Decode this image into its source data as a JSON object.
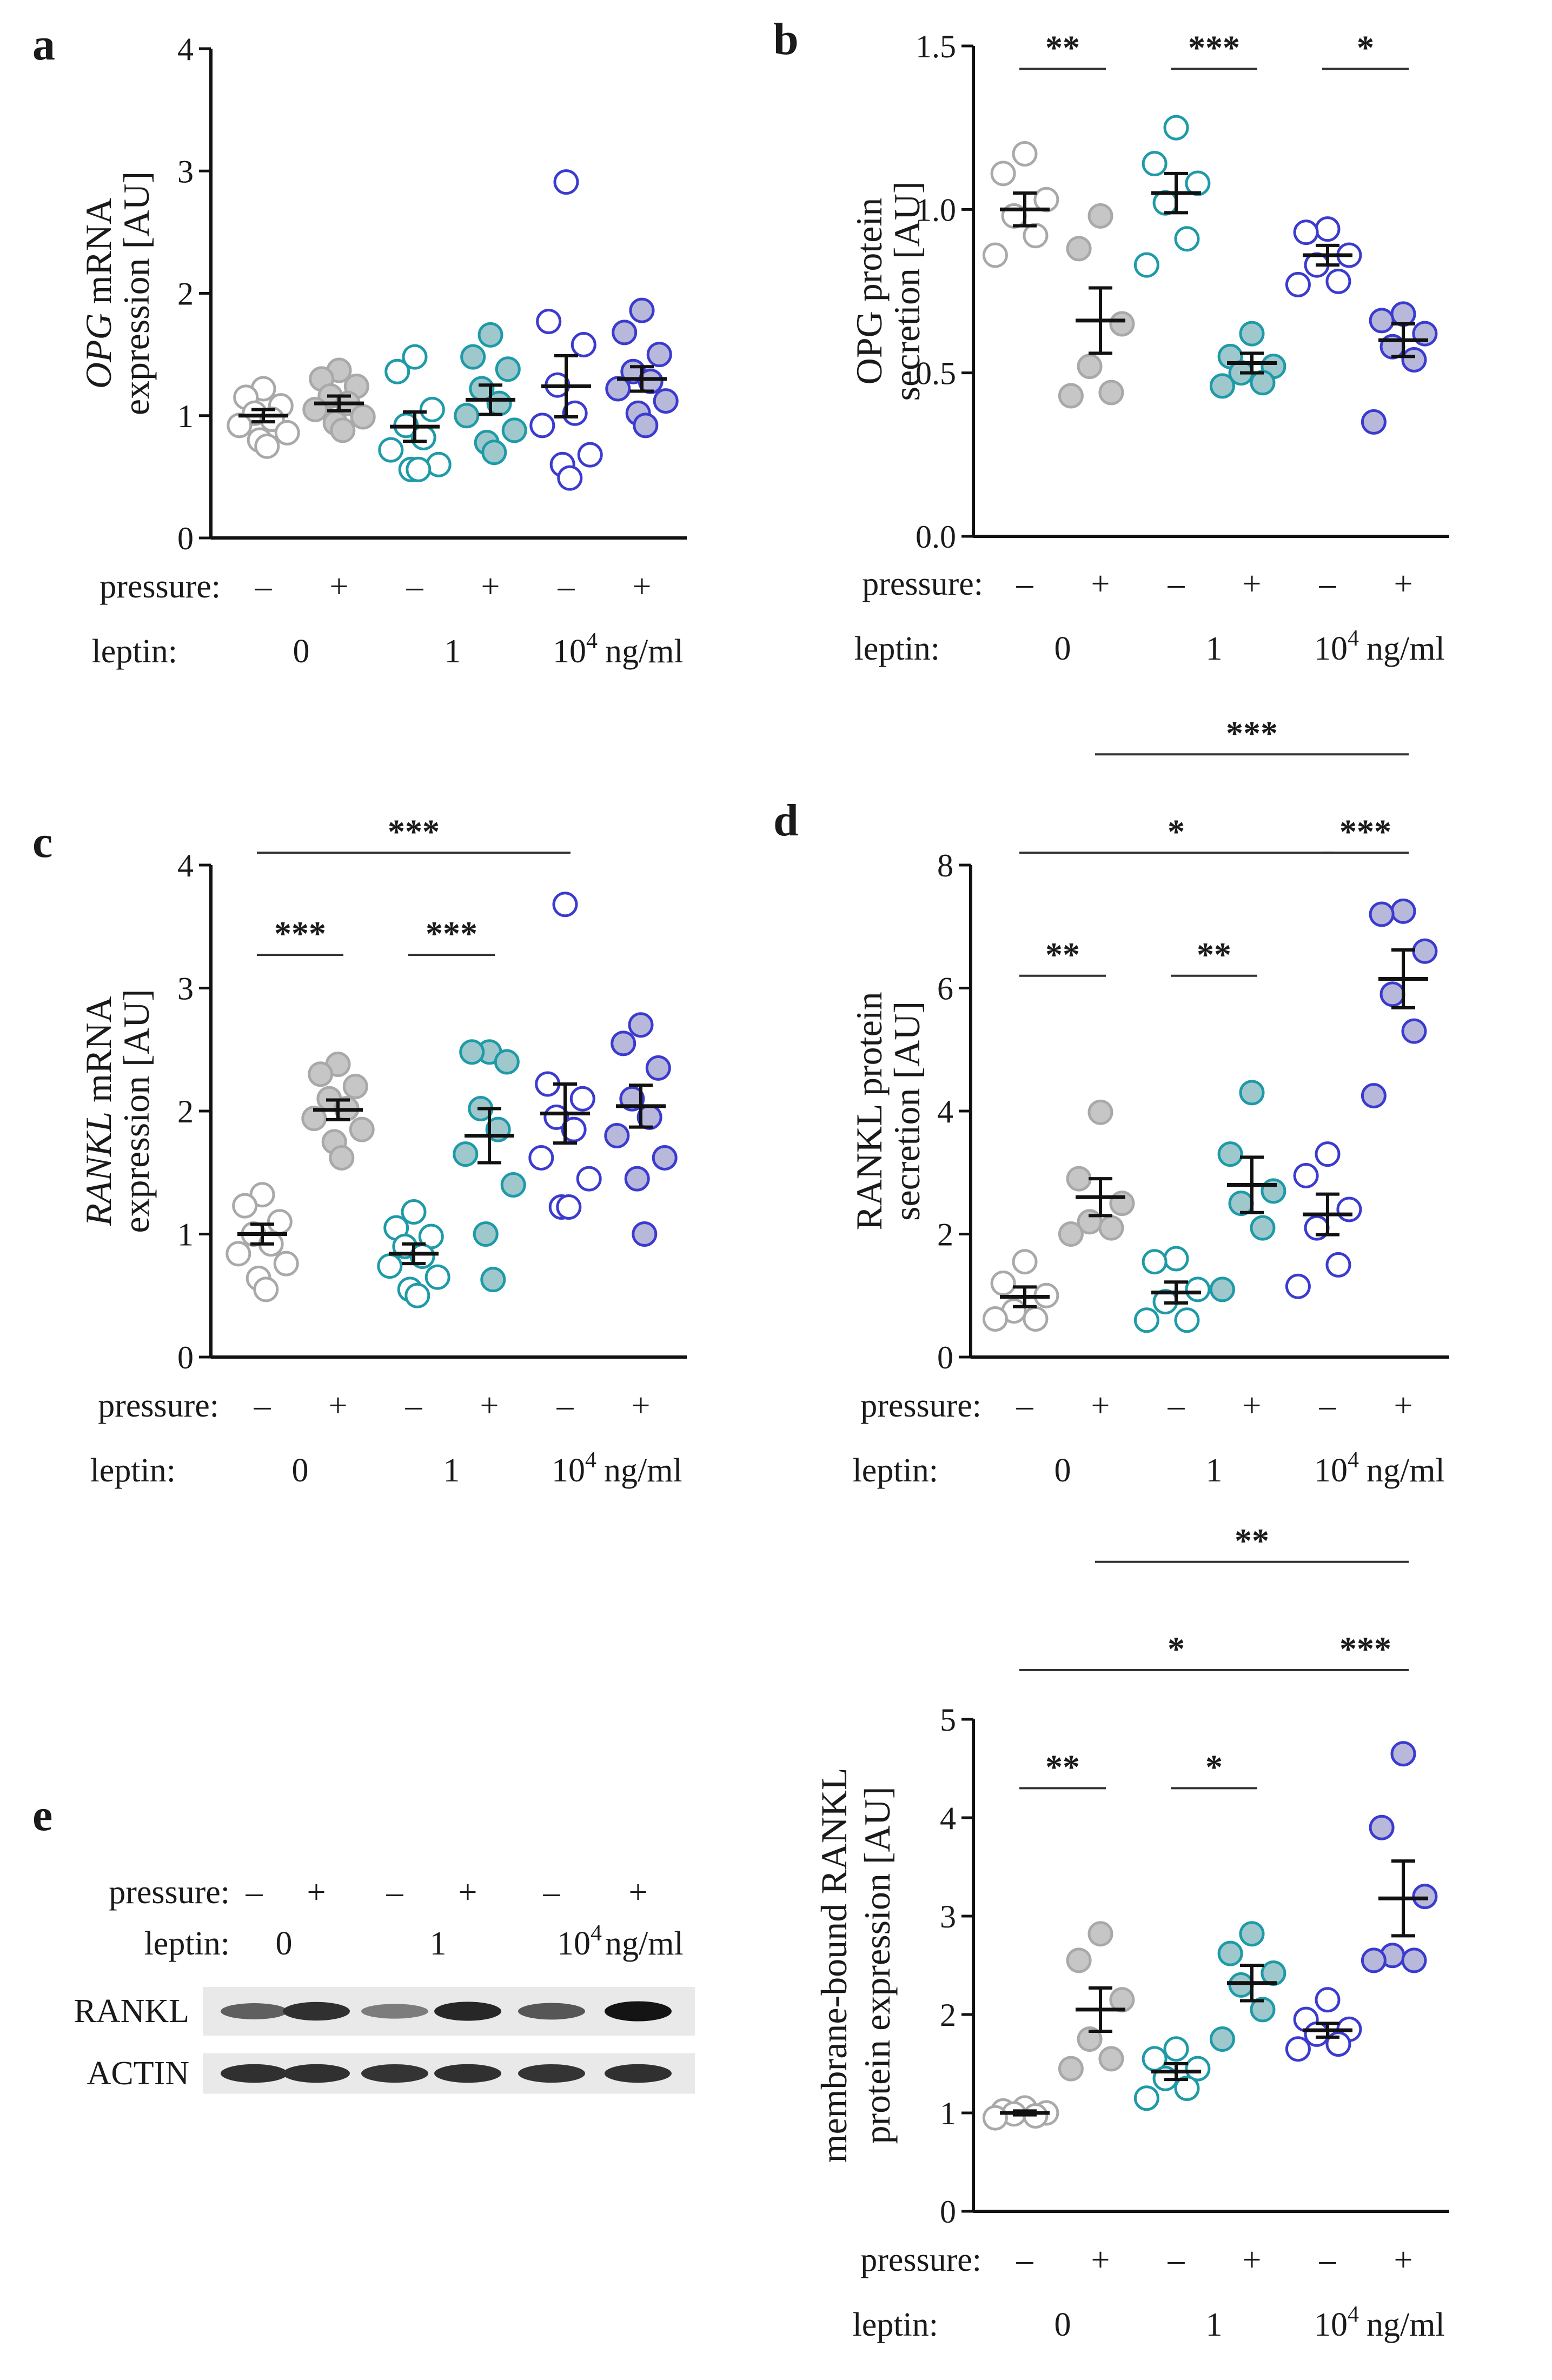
{
  "colors": {
    "control": "#a9a9a9",
    "leptin1": "#1e9aa8",
    "leptin10k": "#3b3bd0",
    "pressure_fill_control": "#c6c6c6",
    "pressure_fill_leptin1": "#9fc8cd",
    "pressure_fill_leptin10k": "#b8b8da",
    "mean_bar": "#111111"
  },
  "labels": {
    "pressure": "pressure:",
    "leptin": "leptin:",
    "minus": "–",
    "plus": "+",
    "leptin_0": "0",
    "leptin_1": "1",
    "leptin_10k_base": "10",
    "leptin_10k_exp": "4",
    "leptin_10k_unit": "ng/ml"
  },
  "chart_data": [
    {
      "id": "a",
      "type": "scatter",
      "panel_label": "a",
      "ylabel_line1_italic": "OPG",
      "ylabel_line1_rest": " mRNA",
      "ylabel_line2": "expression [AU]",
      "ylim": [
        0,
        4
      ],
      "yticks": [
        "0",
        "1",
        "2",
        "3",
        "4"
      ],
      "groups": [
        {
          "leptin": "0",
          "pressure": "-",
          "points": [
            1.22,
            1.15,
            1.08,
            1.02,
            0.97,
            0.92,
            0.86,
            0.8,
            0.75
          ],
          "mean": 1.0,
          "sem": 0.05
        },
        {
          "leptin": "0",
          "pressure": "+",
          "points": [
            1.37,
            1.3,
            1.24,
            1.16,
            1.1,
            1.05,
            0.99,
            0.94,
            0.88
          ],
          "mean": 1.1,
          "sem": 0.06
        },
        {
          "leptin": "1",
          "pressure": "-",
          "points": [
            1.48,
            1.36,
            1.05,
            0.92,
            0.82,
            0.72,
            0.6,
            0.56,
            0.56
          ],
          "mean": 0.91,
          "sem": 0.12
        },
        {
          "leptin": "1",
          "pressure": "+",
          "points": [
            1.66,
            1.48,
            1.38,
            1.22,
            1.1,
            1.0,
            0.88,
            0.78,
            0.7
          ],
          "mean": 1.13,
          "sem": 0.12
        },
        {
          "leptin": "10^4",
          "pressure": "-",
          "points": [
            2.91,
            1.77,
            1.58,
            1.25,
            1.02,
            0.92,
            0.68,
            0.6,
            0.49
          ],
          "mean": 1.24,
          "sem": 0.25
        },
        {
          "leptin": "10^4",
          "pressure": "+",
          "points": [
            1.86,
            1.68,
            1.5,
            1.36,
            1.28,
            1.22,
            1.12,
            1.02,
            0.92
          ],
          "mean": 1.3,
          "sem": 0.1
        }
      ],
      "significance": []
    },
    {
      "id": "b",
      "type": "scatter",
      "panel_label": "b",
      "ylabel_line1": "OPG protein",
      "ylabel_line2": "secretion [AU]",
      "ylim": [
        0,
        1.5
      ],
      "yticks": [
        "0.0",
        "0.5",
        "1.0",
        "1.5"
      ],
      "groups": [
        {
          "leptin": "0",
          "pressure": "-",
          "points": [
            1.17,
            1.11,
            1.03,
            0.98,
            0.92,
            0.86
          ],
          "mean": 1.0,
          "sem": 0.05
        },
        {
          "leptin": "0",
          "pressure": "+",
          "points": [
            0.98,
            0.88,
            0.65,
            0.52,
            0.44,
            0.43
          ],
          "mean": 0.66,
          "sem": 0.1
        },
        {
          "leptin": "1",
          "pressure": "-",
          "points": [
            1.25,
            1.14,
            1.08,
            1.02,
            0.91,
            0.83
          ],
          "mean": 1.05,
          "sem": 0.06
        },
        {
          "leptin": "1",
          "pressure": "+",
          "points": [
            0.62,
            0.55,
            0.52,
            0.5,
            0.47,
            0.46
          ],
          "mean": 0.53,
          "sem": 0.03
        },
        {
          "leptin": "10^4",
          "pressure": "-",
          "points": [
            0.94,
            0.93,
            0.86,
            0.83,
            0.78,
            0.77
          ],
          "mean": 0.86,
          "sem": 0.03
        },
        {
          "leptin": "10^4",
          "pressure": "+",
          "points": [
            0.68,
            0.66,
            0.62,
            0.58,
            0.54,
            0.35
          ],
          "mean": 0.6,
          "sem": 0.05
        }
      ],
      "significance": [
        {
          "from": 0,
          "to": 1,
          "label": "**",
          "y": 1.43
        },
        {
          "from": 2,
          "to": 3,
          "label": "***",
          "y": 1.43
        },
        {
          "from": 4,
          "to": 5,
          "label": "*",
          "y": 1.43
        }
      ]
    },
    {
      "id": "c",
      "type": "scatter",
      "panel_label": "c",
      "ylabel_line1_italic": "RANKL",
      "ylabel_line1_rest": " mRNA",
      "ylabel_line2": "expression [AU]",
      "ylim": [
        0,
        4
      ],
      "yticks": [
        "0",
        "1",
        "2",
        "3",
        "4"
      ],
      "groups": [
        {
          "leptin": "0",
          "pressure": "-",
          "points": [
            1.32,
            1.23,
            1.1,
            1.0,
            0.92,
            0.84,
            0.76,
            0.64,
            0.55
          ],
          "mean": 1.0,
          "sem": 0.08
        },
        {
          "leptin": "0",
          "pressure": "+",
          "points": [
            2.38,
            2.3,
            2.2,
            2.1,
            2.02,
            1.94,
            1.85,
            1.75,
            1.62
          ],
          "mean": 2.01,
          "sem": 0.08
        },
        {
          "leptin": "1",
          "pressure": "-",
          "points": [
            1.18,
            1.05,
            0.98,
            0.9,
            0.82,
            0.74,
            0.65,
            0.55,
            0.5
          ],
          "mean": 0.84,
          "sem": 0.08
        },
        {
          "leptin": "1",
          "pressure": "+",
          "points": [
            2.48,
            2.48,
            2.4,
            2.02,
            1.85,
            1.65,
            1.4,
            1.0,
            0.63
          ],
          "mean": 1.8,
          "sem": 0.22
        },
        {
          "leptin": "10^4",
          "pressure": "-",
          "points": [
            3.68,
            2.22,
            2.1,
            1.95,
            1.85,
            1.62,
            1.45,
            1.22,
            1.22
          ],
          "mean": 1.98,
          "sem": 0.24
        },
        {
          "leptin": "10^4",
          "pressure": "+",
          "points": [
            2.7,
            2.55,
            2.35,
            2.1,
            1.95,
            1.8,
            1.62,
            1.45,
            1.0
          ],
          "mean": 2.04,
          "sem": 0.17
        }
      ],
      "significance": [
        {
          "from": 0,
          "to": 1,
          "label": "***",
          "y": 3.27
        },
        {
          "from": 2,
          "to": 3,
          "label": "***",
          "y": 3.27
        },
        {
          "from": 0,
          "to": 4,
          "label": "***",
          "y": 4.1
        }
      ]
    },
    {
      "id": "d",
      "type": "scatter",
      "panel_label": "d",
      "ylabel_line1": "RANKL protein",
      "ylabel_line2": "secretion [AU]",
      "ylim": [
        0,
        8
      ],
      "yticks": [
        "0",
        "2",
        "4",
        "6",
        "8"
      ],
      "groups": [
        {
          "leptin": "0",
          "pressure": "-",
          "points": [
            1.55,
            1.2,
            1.0,
            0.75,
            0.62,
            0.62
          ],
          "mean": 0.98,
          "sem": 0.16
        },
        {
          "leptin": "0",
          "pressure": "+",
          "points": [
            3.98,
            2.9,
            2.5,
            2.2,
            2.1,
            2.0
          ],
          "mean": 2.6,
          "sem": 0.3
        },
        {
          "leptin": "1",
          "pressure": "-",
          "points": [
            1.6,
            1.55,
            1.1,
            0.9,
            0.6,
            0.6
          ],
          "mean": 1.05,
          "sem": 0.17
        },
        {
          "leptin": "1",
          "pressure": "+",
          "points": [
            4.3,
            3.3,
            2.7,
            2.5,
            2.1,
            1.1
          ],
          "mean": 2.8,
          "sem": 0.45
        },
        {
          "leptin": "10^4",
          "pressure": "-",
          "points": [
            3.3,
            2.95,
            2.4,
            2.1,
            1.5,
            1.15
          ],
          "mean": 2.32,
          "sem": 0.33
        },
        {
          "leptin": "10^4",
          "pressure": "+",
          "points": [
            7.25,
            7.2,
            6.6,
            5.9,
            5.3,
            4.25
          ],
          "mean": 6.15,
          "sem": 0.47
        }
      ],
      "significance": [
        {
          "from": 0,
          "to": 1,
          "label": "**",
          "y": 6.2
        },
        {
          "from": 2,
          "to": 3,
          "label": "**",
          "y": 6.2
        },
        {
          "from": 0,
          "to": 4,
          "label": "*",
          "y": 8.2
        },
        {
          "from": 4,
          "to": 5,
          "label": "***",
          "y": 8.2
        },
        {
          "from": 1,
          "to": 5,
          "label": "***",
          "y": 9.8
        }
      ]
    },
    {
      "id": "e",
      "type": "scatter",
      "panel_label": "",
      "ylabel_line1": "membrane-bound RANKL",
      "ylabel_line2": "protein expression [AU]",
      "ylim": [
        0,
        5
      ],
      "yticks": [
        "0",
        "1",
        "2",
        "3",
        "4",
        "5"
      ],
      "groups": [
        {
          "leptin": "0",
          "pressure": "-",
          "points": [
            1.05,
            1.02,
            1.0,
            0.99,
            0.97,
            0.95
          ],
          "mean": 1.0,
          "sem": 0.02
        },
        {
          "leptin": "0",
          "pressure": "+",
          "points": [
            2.82,
            2.55,
            2.15,
            1.75,
            1.55,
            1.45
          ],
          "mean": 2.05,
          "sem": 0.22
        },
        {
          "leptin": "1",
          "pressure": "-",
          "points": [
            1.65,
            1.55,
            1.45,
            1.35,
            1.25,
            1.15
          ],
          "mean": 1.42,
          "sem": 0.08
        },
        {
          "leptin": "1",
          "pressure": "+",
          "points": [
            2.82,
            2.62,
            2.42,
            2.3,
            2.05,
            1.75
          ],
          "mean": 2.32,
          "sem": 0.18
        },
        {
          "leptin": "10^4",
          "pressure": "-",
          "points": [
            2.15,
            1.95,
            1.85,
            1.8,
            1.7,
            1.65
          ],
          "mean": 1.84,
          "sem": 0.07
        },
        {
          "leptin": "10^4",
          "pressure": "+",
          "points": [
            4.65,
            3.9,
            3.2,
            2.6,
            2.55,
            2.55
          ],
          "mean": 3.18,
          "sem": 0.38
        }
      ],
      "significance": [
        {
          "from": 0,
          "to": 1,
          "label": "**",
          "y": 4.3
        },
        {
          "from": 2,
          "to": 3,
          "label": "*",
          "y": 4.3
        },
        {
          "from": 0,
          "to": 4,
          "label": "*",
          "y": 5.5
        },
        {
          "from": 4,
          "to": 5,
          "label": "***",
          "y": 5.5
        },
        {
          "from": 1,
          "to": 5,
          "label": "**",
          "y": 6.6
        }
      ]
    }
  ],
  "western_blot": {
    "panel_label": "e",
    "rows": [
      {
        "name": "RANKL",
        "intensities": [
          0.55,
          0.8,
          0.4,
          0.85,
          0.6,
          0.95
        ]
      },
      {
        "name": "ACTIN",
        "intensities": [
          0.8,
          0.8,
          0.78,
          0.8,
          0.78,
          0.8
        ]
      }
    ]
  }
}
